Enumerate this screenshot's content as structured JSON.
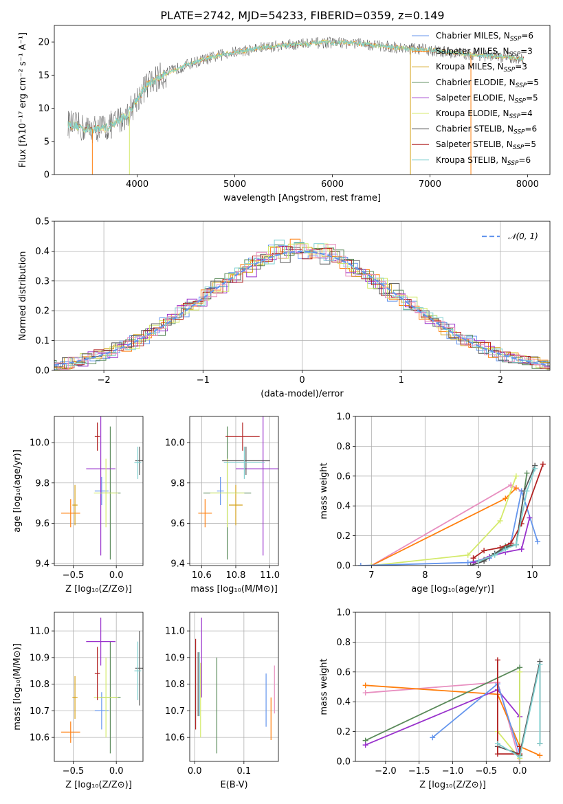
{
  "title": "PLATE=2742, MJD=54233, FIBERID=0359, z=0.149",
  "colors": {
    "Chabrier MILES": "#6495ed",
    "Salpeter MILES": "#ff7f0e",
    "Kroupa MILES": "#d4a017",
    "Chabrier ELODIE": "#5a8a5a",
    "Salpeter ELODIE": "#9932cc",
    "Kroupa ELODIE": "#d4ea6b",
    "Chabrier STELIB": "#555555",
    "Salpeter STELIB": "#b22222",
    "Kroupa STELIB": "#80d0d0",
    "normal": "#6495ed",
    "pink": "#e88fc0"
  },
  "chart_data": [
    {
      "type": "line",
      "name": "spectrum",
      "xlabel": "wavelength [Angstrom, rest frame]",
      "ylabel": "Flux [f_λ 10^-17 erg cm^-2 s^-1 A^-1]",
      "xlim": [
        3150,
        8230
      ],
      "ylim": [
        0,
        22.5
      ],
      "xticks": [
        4000,
        5000,
        6000,
        7000,
        8000
      ],
      "yticks": [
        0,
        5,
        10,
        15,
        20
      ],
      "legend": [
        {
          "label": "Chabrier MILES, N_SSP=6",
          "key": "Chabrier MILES"
        },
        {
          "label": "Salpeter MILES, N_SSP=3",
          "key": "Salpeter MILES"
        },
        {
          "label": "Kroupa MILES, N_SSP=3",
          "key": "Kroupa MILES"
        },
        {
          "label": "Chabrier ELODIE, N_SSP=5",
          "key": "Chabrier ELODIE"
        },
        {
          "label": "Salpeter ELODIE, N_SSP=5",
          "key": "Salpeter ELODIE"
        },
        {
          "label": "Kroupa ELODIE, N_SSP=4",
          "key": "Kroupa ELODIE"
        },
        {
          "label": "Chabrier STELIB, N_SSP=6",
          "key": "Chabrier STELIB"
        },
        {
          "label": "Salpeter STELIB, N_SSP=5",
          "key": "Salpeter STELIB"
        },
        {
          "label": "Kroupa STELIB, N_SSP=6",
          "key": "Kroupa STELIB"
        }
      ],
      "continuum": {
        "x": [
          3300,
          3500,
          3700,
          3900,
          4000,
          4100,
          4300,
          4500,
          4700,
          4900,
          5100,
          5300,
          5500,
          5700,
          5900,
          6100,
          6300,
          6500,
          6700,
          6900,
          7100,
          7300,
          7500,
          7700,
          7900
        ],
        "y": [
          7.6,
          6.8,
          7.2,
          9.0,
          11.5,
          13.5,
          15.3,
          16.5,
          17.4,
          18.2,
          18.7,
          19.2,
          19.5,
          19.7,
          19.9,
          19.9,
          19.7,
          19.4,
          19.1,
          18.9,
          18.6,
          18.3,
          18.0,
          17.8,
          17.5
        ]
      },
      "cutoffs": [
        {
          "key": "Salpeter MILES",
          "x": 3540
        },
        {
          "key": "Kroupa ELODIE",
          "x": 3920
        },
        {
          "key": "Kroupa MILES",
          "x": 6800
        },
        {
          "key": "Salpeter MILES",
          "x": 7420
        }
      ]
    },
    {
      "type": "step",
      "name": "residual histogram",
      "xlabel": "(data-model)/error",
      "ylabel": "Normed distribution",
      "xlim": [
        -2.5,
        2.5
      ],
      "ylim": [
        0,
        0.5
      ],
      "xticks": [
        -2,
        -1,
        0,
        1,
        2
      ],
      "yticks": [
        0.0,
        0.1,
        0.2,
        0.3,
        0.4,
        0.5
      ],
      "legend": [
        {
          "label": "𝒩(0, 1)",
          "style": "dashed",
          "key": "normal"
        }
      ]
    },
    {
      "type": "errorbar",
      "name": "age vs Z",
      "xlabel": "Z [log10(Z/Z⊙)]",
      "ylabel": "age [log10(age/yr)]",
      "xlim": [
        -0.72,
        0.31
      ],
      "ylim": [
        9.39,
        10.13
      ],
      "xticks": [
        -0.5,
        0.0
      ],
      "yticks": [
        9.4,
        9.6,
        9.8,
        10.0
      ],
      "points": [
        {
          "key": "Chabrier MILES",
          "x": -0.17,
          "y": 9.76,
          "xerr": 0.08,
          "yerr": 0.07
        },
        {
          "key": "Salpeter MILES",
          "x": -0.53,
          "y": 9.65,
          "xerr": 0.11,
          "yerr": 0.07
        },
        {
          "key": "Kroupa MILES",
          "x": -0.48,
          "y": 9.69,
          "xerr": 0.03,
          "yerr": 0.1
        },
        {
          "key": "Chabrier ELODIE",
          "x": -0.07,
          "y": 9.75,
          "xerr": 0.12,
          "yerr": 0.33
        },
        {
          "key": "Salpeter ELODIE",
          "x": -0.18,
          "y": 9.87,
          "xerr": 0.17,
          "yerr": 0.43
        },
        {
          "key": "Kroupa ELODIE",
          "x": -0.12,
          "y": 9.75,
          "xerr": 0.14,
          "yerr": 0.17
        },
        {
          "key": "Chabrier STELIB",
          "x": 0.27,
          "y": 9.91,
          "xerr": 0.05,
          "yerr": 0.07
        },
        {
          "key": "Salpeter STELIB",
          "x": -0.22,
          "y": 10.03,
          "xerr": 0.03,
          "yerr": 0.07
        },
        {
          "key": "Kroupa STELIB",
          "x": 0.25,
          "y": 9.9,
          "xerr": 0.04,
          "yerr": 0.08
        }
      ]
    },
    {
      "type": "errorbar",
      "name": "age vs mass",
      "xlabel": "mass [log10(M/M⊙)]",
      "ylabel": "",
      "xlim": [
        10.53,
        11.05
      ],
      "ylim": [
        9.39,
        10.13
      ],
      "xticks": [
        10.6,
        10.8,
        11.0
      ],
      "yticks": [
        9.4,
        9.6,
        9.8,
        10.0
      ],
      "points": [
        {
          "key": "Chabrier MILES",
          "x": 10.71,
          "y": 9.76,
          "xerr": 0.02,
          "yerr": 0.07
        },
        {
          "key": "Salpeter MILES",
          "x": 10.62,
          "y": 9.65,
          "xerr": 0.04,
          "yerr": 0.07
        },
        {
          "key": "Kroupa MILES",
          "x": 10.8,
          "y": 9.69,
          "xerr": 0.04,
          "yerr": 0.1
        },
        {
          "key": "Chabrier ELODIE",
          "x": 10.75,
          "y": 9.75,
          "xerr": 0.14,
          "yerr": 0.33
        },
        {
          "key": "Salpeter ELODIE",
          "x": 10.96,
          "y": 9.87,
          "xerr": 0.16,
          "yerr": 0.43
        },
        {
          "key": "Kroupa ELODIE",
          "x": 10.75,
          "y": 9.75,
          "xerr": 0.1,
          "yerr": 0.17
        },
        {
          "key": "Chabrier STELIB",
          "x": 10.86,
          "y": 9.91,
          "xerr": 0.14,
          "yerr": 0.07
        },
        {
          "key": "Salpeter STELIB",
          "x": 10.84,
          "y": 10.03,
          "xerr": 0.1,
          "yerr": 0.07
        },
        {
          "key": "Kroupa STELIB",
          "x": 10.85,
          "y": 9.9,
          "xerr": 0.12,
          "yerr": 0.08
        }
      ]
    },
    {
      "type": "line",
      "name": "mass weight vs age",
      "xlabel": "age [log10(age/yr)]",
      "ylabel": "mass weight",
      "xlim": [
        6.7,
        10.33
      ],
      "ylim": [
        0,
        1.0
      ],
      "xticks": [
        7,
        8,
        9,
        10
      ],
      "yticks": [
        0.0,
        0.2,
        0.4,
        0.6,
        0.8,
        1.0
      ],
      "series": [
        {
          "key": "pink",
          "x": [
            7.0,
            9.6,
            9.8
          ],
          "y": [
            0.0,
            0.54,
            0.5
          ]
        },
        {
          "key": "Salpeter MILES",
          "x": [
            7.0,
            9.5,
            9.7
          ],
          "y": [
            0.0,
            0.45,
            0.52
          ]
        },
        {
          "key": "Kroupa ELODIE",
          "x": [
            7.0,
            8.8,
            9.4,
            9.7
          ],
          "y": [
            0.0,
            0.07,
            0.3,
            0.6
          ]
        },
        {
          "key": "Chabrier MILES",
          "x": [
            6.8,
            8.8,
            9.2,
            9.6,
            9.8,
            10.1
          ],
          "y": [
            0.0,
            0.02,
            0.05,
            0.15,
            0.5,
            0.16
          ]
        },
        {
          "key": "Chabrier ELODIE",
          "x": [
            8.9,
            9.1,
            9.3,
            9.5,
            9.7,
            9.9
          ],
          "y": [
            0.02,
            0.04,
            0.08,
            0.13,
            0.14,
            0.62
          ]
        },
        {
          "key": "Salpeter ELODIE",
          "x": [
            8.9,
            9.2,
            9.5,
            9.8,
            9.95
          ],
          "y": [
            0.02,
            0.06,
            0.09,
            0.11,
            0.32
          ]
        },
        {
          "key": "Chabrier STELIB",
          "x": [
            8.85,
            9.1,
            9.3,
            9.5,
            9.7,
            9.85,
            10.05
          ],
          "y": [
            0.0,
            0.03,
            0.08,
            0.12,
            0.14,
            0.5,
            0.67
          ]
        },
        {
          "key": "Salpeter STELIB",
          "x": [
            8.9,
            9.1,
            9.4,
            9.6,
            9.8,
            10.2
          ],
          "y": [
            0.05,
            0.1,
            0.12,
            0.15,
            0.28,
            0.68
          ]
        },
        {
          "key": "Kroupa STELIB",
          "x": [
            9.0,
            9.3,
            9.5,
            9.7,
            9.9,
            10.05
          ],
          "y": [
            0.03,
            0.07,
            0.11,
            0.14,
            0.5,
            0.65
          ]
        }
      ]
    },
    {
      "type": "errorbar",
      "name": "mass vs Z",
      "xlabel": "Z [log10(Z/Z⊙)]",
      "ylabel": "mass [log10(M/M⊙)]",
      "xlim": [
        -0.72,
        0.31
      ],
      "ylim": [
        10.51,
        11.07
      ],
      "xticks": [
        -0.5,
        0.0
      ],
      "yticks": [
        10.6,
        10.7,
        10.8,
        10.9,
        11.0
      ],
      "points": [
        {
          "key": "Chabrier MILES",
          "x": -0.17,
          "y": 10.7,
          "xerr": 0.08,
          "yerr": 0.07
        },
        {
          "key": "Salpeter MILES",
          "x": -0.53,
          "y": 10.62,
          "xerr": 0.11,
          "yerr": 0.04
        },
        {
          "key": "Kroupa MILES",
          "x": -0.48,
          "y": 10.75,
          "xerr": 0.03,
          "yerr": 0.08
        },
        {
          "key": "Chabrier ELODIE",
          "x": -0.07,
          "y": 10.75,
          "xerr": 0.12,
          "yerr": 0.21
        },
        {
          "key": "Salpeter ELODIE",
          "x": -0.18,
          "y": 10.96,
          "xerr": 0.17,
          "yerr": 0.09
        },
        {
          "key": "Kroupa ELODIE",
          "x": -0.12,
          "y": 10.75,
          "xerr": 0.14,
          "yerr": 0.15
        },
        {
          "key": "Chabrier STELIB",
          "x": 0.27,
          "y": 10.86,
          "xerr": 0.05,
          "yerr": 0.14
        },
        {
          "key": "Salpeter STELIB",
          "x": -0.22,
          "y": 10.84,
          "xerr": 0.03,
          "yerr": 0.1
        },
        {
          "key": "Kroupa STELIB",
          "x": 0.25,
          "y": 10.85,
          "xerr": 0.04,
          "yerr": 0.11
        }
      ]
    },
    {
      "type": "errorbar",
      "name": "mass vs E(B-V)",
      "xlabel": "E(B-V)",
      "ylabel": "",
      "xlim": [
        -0.01,
        0.17
      ],
      "ylim": [
        10.51,
        11.07
      ],
      "xticks": [
        0.0,
        0.1
      ],
      "yticks": [
        10.6,
        10.7,
        10.8,
        10.9,
        11.0
      ],
      "points": [
        {
          "key": "Chabrier MILES",
          "x": 0.145,
          "y": 10.74,
          "xerr": 0.0,
          "yerr": 0.1
        },
        {
          "key": "Salpeter MILES",
          "x": 0.155,
          "y": 10.67,
          "xerr": 0.0,
          "yerr": 0.08
        },
        {
          "key": "pink",
          "x": 0.162,
          "y": 10.78,
          "xerr": 0.0,
          "yerr": 0.09
        },
        {
          "key": "Chabrier ELODIE",
          "x": 0.045,
          "y": 10.72,
          "xerr": 0.0,
          "yerr": 0.18
        },
        {
          "key": "Salpeter ELODIE",
          "x": 0.014,
          "y": 10.9,
          "xerr": 0.0,
          "yerr": 0.15
        },
        {
          "key": "Kroupa ELODIE",
          "x": 0.012,
          "y": 10.74,
          "xerr": 0.0,
          "yerr": 0.14
        },
        {
          "key": "Chabrier STELIB",
          "x": 0.007,
          "y": 10.8,
          "xerr": 0.0,
          "yerr": 0.12
        },
        {
          "key": "Salpeter STELIB",
          "x": 0.002,
          "y": 10.8,
          "xerr": 0.0,
          "yerr": 0.17
        },
        {
          "key": "Kroupa STELIB",
          "x": 0.01,
          "y": 10.8,
          "xerr": 0.0,
          "yerr": 0.12
        }
      ]
    },
    {
      "type": "line",
      "name": "mass weight vs Z",
      "xlabel": "Z [log10(Z/Z⊙)]",
      "ylabel": "mass weight",
      "xlim": [
        -2.45,
        0.45
      ],
      "ylim": [
        0,
        1.0
      ],
      "xticks": [
        -2.0,
        -1.5,
        -1.0,
        -0.5,
        0.0
      ],
      "yticks": [
        0.0,
        0.2,
        0.4,
        0.6,
        0.8,
        1.0
      ],
      "series": [
        {
          "key": "pink",
          "x": [
            -2.3,
            -0.33,
            0.0
          ],
          "y": [
            0.46,
            0.53,
            0.0
          ]
        },
        {
          "key": "Salpeter MILES",
          "x": [
            -2.3,
            -0.33,
            0.0,
            0.3
          ],
          "y": [
            0.51,
            0.45,
            0.1,
            0.04
          ]
        },
        {
          "key": "Chabrier ELODIE",
          "x": [
            -2.3,
            0.0,
            0.0
          ],
          "y": [
            0.14,
            0.63,
            0.04
          ]
        },
        {
          "key": "Salpeter ELODIE",
          "x": [
            -2.3,
            -0.33,
            0.0
          ],
          "y": [
            0.11,
            0.48,
            0.3
          ]
        },
        {
          "key": "Chabrier MILES",
          "x": [
            -1.3,
            -0.33,
            0.0
          ],
          "y": [
            0.16,
            0.52,
            0.05
          ]
        },
        {
          "key": "Kroupa ELODIE",
          "x": [
            -0.33,
            0.0,
            0.0
          ],
          "y": [
            0.2,
            0.02,
            0.6
          ]
        },
        {
          "key": "Chabrier STELIB",
          "x": [
            -0.33,
            0.0,
            0.3,
            0.3
          ],
          "y": [
            0.1,
            0.05,
            0.67,
            0.12
          ]
        },
        {
          "key": "Salpeter STELIB",
          "x": [
            -0.33,
            -0.33,
            0.0,
            0.0
          ],
          "y": [
            0.68,
            0.05,
            0.05,
            0.1
          ]
        },
        {
          "key": "Kroupa STELIB",
          "x": [
            -0.33,
            0.0,
            0.3,
            0.3
          ],
          "y": [
            0.12,
            0.03,
            0.65,
            0.12
          ]
        }
      ]
    }
  ]
}
